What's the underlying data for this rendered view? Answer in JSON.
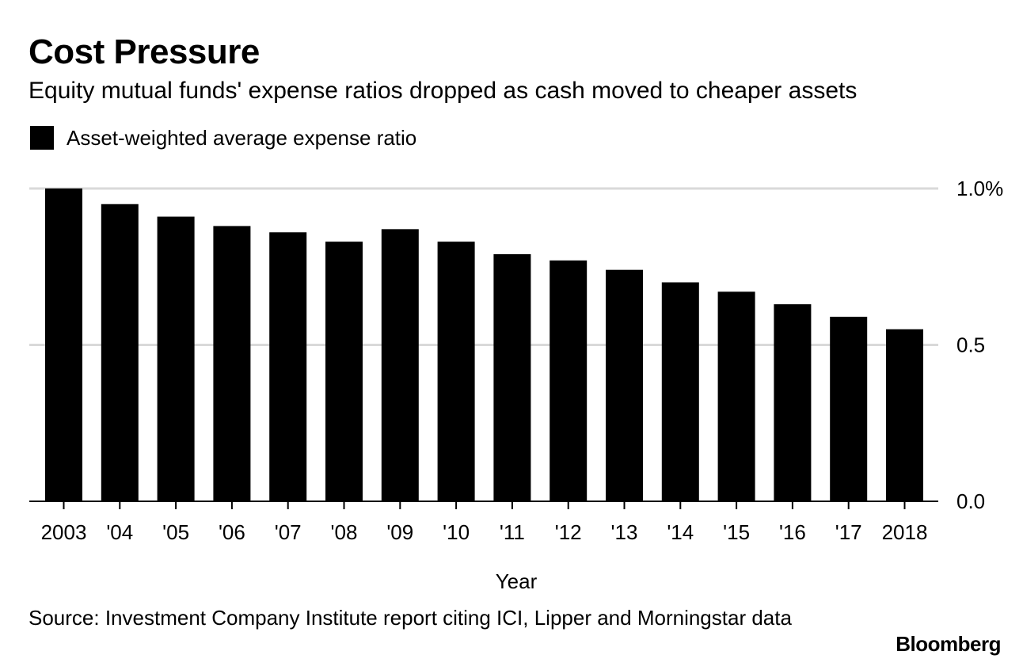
{
  "header": {
    "title": "Cost Pressure",
    "subtitle": "Equity mutual funds' expense ratios dropped as cash moved to cheaper assets"
  },
  "legend": {
    "label": "Asset-weighted average expense ratio",
    "color": "#000000"
  },
  "chart_data": {
    "type": "bar",
    "title": "Cost Pressure",
    "subtitle": "Equity mutual funds' expense ratios dropped as cash moved to cheaper assets",
    "xlabel": "Year",
    "ylabel": "",
    "categories": [
      "2003",
      "'04",
      "'05",
      "'06",
      "'07",
      "'08",
      "'09",
      "'10",
      "'11",
      "'12",
      "'13",
      "'14",
      "'15",
      "'16",
      "'17",
      "2018"
    ],
    "series": [
      {
        "name": "Asset-weighted average expense ratio",
        "values": [
          1.0,
          0.95,
          0.91,
          0.88,
          0.86,
          0.83,
          0.87,
          0.83,
          0.79,
          0.77,
          0.74,
          0.7,
          0.67,
          0.63,
          0.59,
          0.55
        ],
        "color": "#000000"
      }
    ],
    "ylim": [
      0,
      1.0
    ],
    "yticks": [
      {
        "value": 0.0,
        "label": "0.0"
      },
      {
        "value": 0.5,
        "label": "0.5"
      },
      {
        "value": 1.0,
        "label": "1.0%"
      }
    ],
    "grid": true,
    "grid_color": "#d9d9d9",
    "legend_position": "top-left",
    "y_axis_side": "right"
  },
  "footer": {
    "source": "Source: Investment Company Institute report citing ICI, Lipper and Morningstar data",
    "brand": "Bloomberg"
  }
}
